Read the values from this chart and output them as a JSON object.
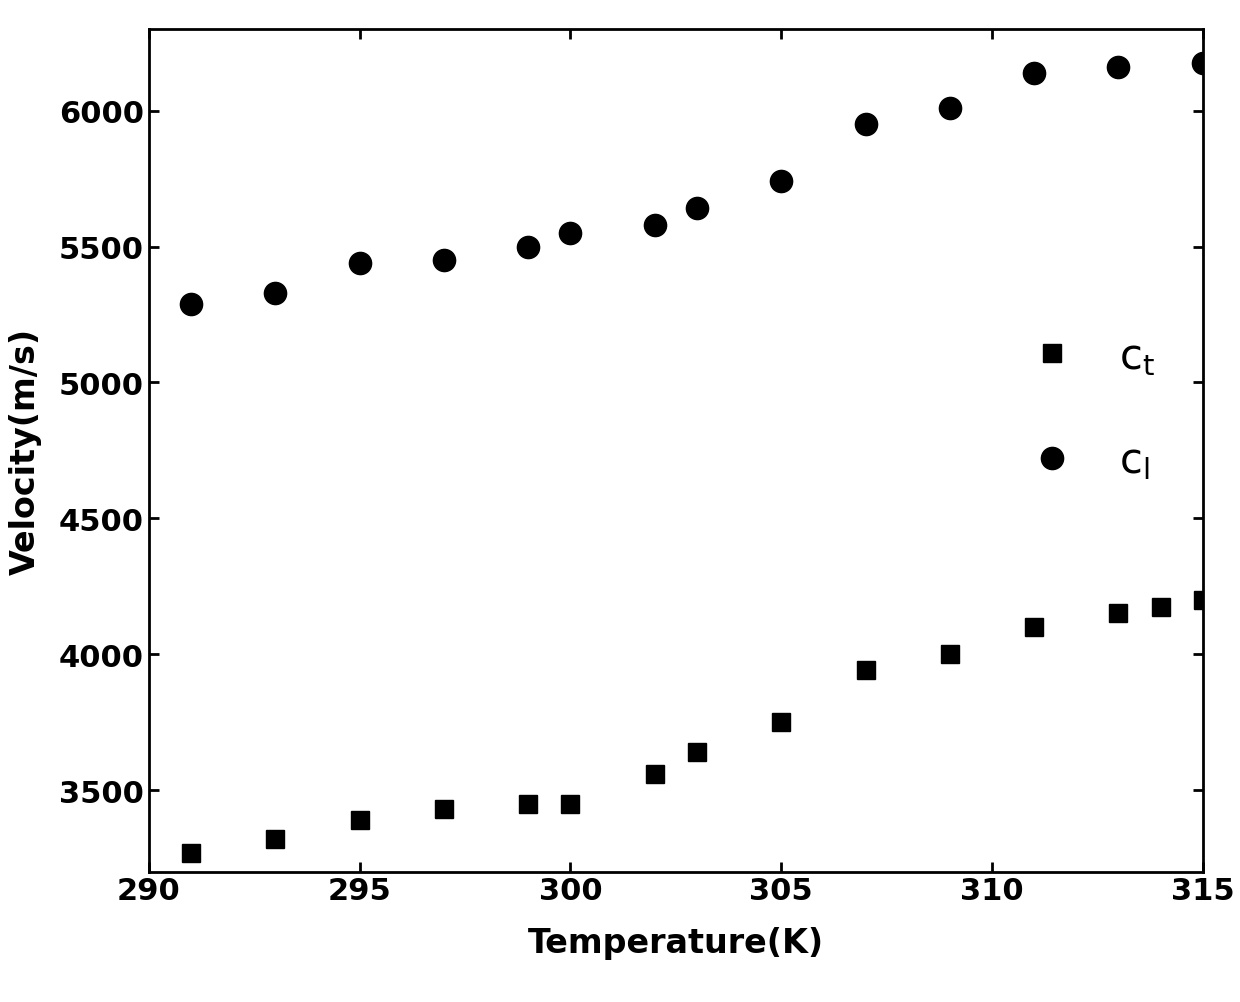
{
  "ct_temp": [
    291,
    293,
    295,
    297,
    299,
    300,
    302,
    303,
    305,
    307,
    309,
    311,
    313,
    314,
    315
  ],
  "ct_vel": [
    3270,
    3320,
    3390,
    3430,
    3450,
    3450,
    3560,
    3640,
    3750,
    3940,
    4000,
    4100,
    4150,
    4175,
    4200
  ],
  "cl_temp": [
    291,
    293,
    295,
    297,
    299,
    300,
    302,
    303,
    305,
    307,
    309,
    311,
    313,
    315
  ],
  "cl_vel": [
    5290,
    5330,
    5440,
    5450,
    5500,
    5550,
    5580,
    5640,
    5740,
    5950,
    6010,
    6140,
    6160,
    6175
  ],
  "xlabel": "Temperature(K)",
  "ylabel": "Velocity(m/s)",
  "xlim": [
    290,
    315
  ],
  "ylim": [
    3200,
    6300
  ],
  "xticks": [
    290,
    295,
    300,
    305,
    310,
    315
  ],
  "yticks": [
    3500,
    4000,
    4500,
    5000,
    5500,
    6000
  ],
  "background_color": "#ffffff",
  "marker_color": "#000000",
  "marker_size_square": 13,
  "marker_size_circle": 16,
  "axis_linewidth": 2.0,
  "label_fontsize": 24,
  "tick_fontsize": 22,
  "legend_fontsize": 30
}
